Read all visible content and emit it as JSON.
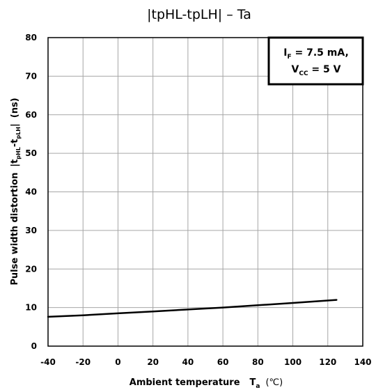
{
  "chart_data": {
    "type": "line",
    "title": "|tpHL-tpLH| – Ta",
    "xlabel": {
      "main": "Ambient temperature",
      "symbol": "T",
      "symbol_sub": "a",
      "unit": "(℃)"
    },
    "ylabel": {
      "main": "Pulse width distortion",
      "expr_open": "|t",
      "sub1": "pHL",
      "expr_mid": "-t",
      "sub2": "pLH",
      "expr_close": "|",
      "unit": "(ns)"
    },
    "xlim": [
      -40,
      140
    ],
    "ylim": [
      0,
      80
    ],
    "x_ticks": [
      "-40",
      "-20",
      "0",
      "20",
      "40",
      "60",
      "80",
      "100",
      "120",
      "140"
    ],
    "y_ticks": [
      "0",
      "10",
      "20",
      "30",
      "40",
      "50",
      "60",
      "70",
      "80"
    ],
    "grid": true,
    "annotation": {
      "line1_symbol": "I",
      "line1_sub": "F",
      "line1_value": " = 7.5 mA,",
      "line2_symbol": "V",
      "line2_sub": "CC",
      "line2_value": " = 5 V",
      "position": "top-right"
    },
    "series": [
      {
        "x": [
          -40,
          -20,
          0,
          20,
          40,
          60,
          80,
          100,
          125
        ],
        "y": [
          7.6,
          8.0,
          8.5,
          9.0,
          9.5,
          10.0,
          10.6,
          11.2,
          12.0
        ]
      }
    ]
  }
}
